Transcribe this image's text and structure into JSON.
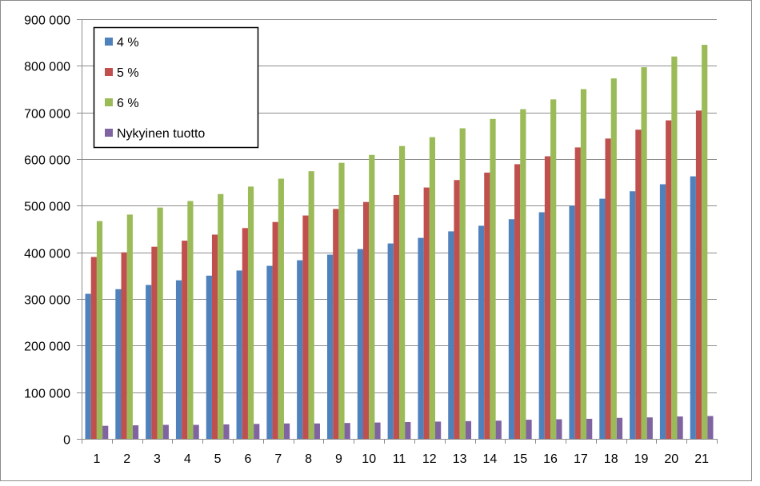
{
  "chart_data": {
    "type": "bar",
    "title": "",
    "xlabel": "",
    "ylabel": "",
    "ylim": [
      0,
      900000
    ],
    "yticks": [
      0,
      100000,
      200000,
      300000,
      400000,
      500000,
      600000,
      700000,
      800000,
      900000
    ],
    "ytick_labels": [
      "0",
      "100 000",
      "200 000",
      "300 000",
      "400 000",
      "500 000",
      "600 000",
      "700 000",
      "800 000",
      "900 000"
    ],
    "grid": true,
    "legend_position": "top-left",
    "categories": [
      "1",
      "2",
      "3",
      "4",
      "5",
      "6",
      "7",
      "8",
      "9",
      "10",
      "11",
      "12",
      "13",
      "14",
      "15",
      "16",
      "17",
      "18",
      "19",
      "20",
      "21"
    ],
    "series": [
      {
        "name": "4 %",
        "color": "#4F81BD",
        "values": [
          311000,
          321000,
          330000,
          340000,
          350000,
          361000,
          371000,
          383000,
          395000,
          407000,
          419000,
          431000,
          445000,
          457000,
          471000,
          486000,
          500000,
          515000,
          531000,
          546000,
          563000
        ]
      },
      {
        "name": "5 %",
        "color": "#C0504D",
        "values": [
          390000,
          400000,
          412000,
          425000,
          438000,
          452000,
          465000,
          479000,
          493000,
          508000,
          523000,
          539000,
          555000,
          571000,
          589000,
          606000,
          625000,
          644000,
          663000,
          683000,
          704000
        ]
      },
      {
        "name": "6 %",
        "color": "#9BBB59",
        "values": [
          467000,
          481000,
          496000,
          510000,
          525000,
          541000,
          558000,
          574000,
          592000,
          609000,
          628000,
          647000,
          666000,
          686000,
          707000,
          728000,
          750000,
          773000,
          797000,
          820000,
          845000
        ]
      },
      {
        "name": "Nykyinen tuotto",
        "color": "#8064A2",
        "values": [
          28000,
          29000,
          30000,
          30000,
          31000,
          32000,
          33000,
          33000,
          34000,
          35000,
          36000,
          37000,
          38000,
          39000,
          41000,
          42000,
          43000,
          45000,
          46000,
          48000,
          49000
        ]
      }
    ]
  }
}
